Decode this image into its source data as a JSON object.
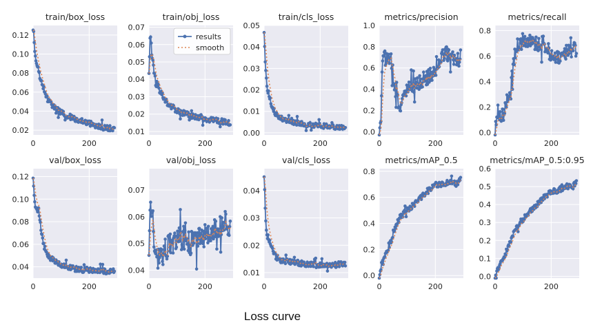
{
  "caption": "Loss curve",
  "legend": {
    "results_label": "results",
    "smooth_label": "smooth",
    "placement": "upper right of train/obj_loss"
  },
  "colors": {
    "results": "#4c72b0",
    "smooth": "#dd8452",
    "panel_background": "#eaeaf2"
  },
  "chart_data": [
    {
      "type": "line",
      "title": "train/box_loss",
      "xlim": [
        0,
        300
      ],
      "ylim": [
        0.015,
        0.13
      ],
      "xticks": [
        "0",
        "200"
      ],
      "yticks": [
        "0.02",
        "0.04",
        "0.06",
        "0.08",
        "0.10",
        "0.12"
      ],
      "grid": true,
      "series": [
        {
          "name": "results",
          "x": [
            0,
            5,
            10,
            20,
            30,
            40,
            50,
            75,
            100,
            150,
            200,
            250,
            290
          ],
          "values": [
            0.128,
            0.105,
            0.09,
            0.082,
            0.07,
            0.062,
            0.053,
            0.044,
            0.038,
            0.032,
            0.027,
            0.023,
            0.021
          ]
        }
      ]
    },
    {
      "type": "line",
      "title": "train/obj_loss",
      "xlim": [
        0,
        300
      ],
      "ylim": [
        0.008,
        0.071
      ],
      "xticks": [
        "0",
        "200"
      ],
      "yticks": [
        "0.01",
        "0.02",
        "0.03",
        "0.04",
        "0.05",
        "0.06",
        "0.07"
      ],
      "grid": true,
      "series": [
        {
          "name": "results",
          "x": [
            0,
            5,
            10,
            20,
            30,
            40,
            50,
            75,
            100,
            150,
            200,
            250,
            290
          ],
          "values": [
            0.045,
            0.068,
            0.055,
            0.042,
            0.037,
            0.033,
            0.03,
            0.025,
            0.022,
            0.019,
            0.017,
            0.016,
            0.015
          ]
        }
      ]
    },
    {
      "type": "line",
      "title": "train/cls_loss",
      "xlim": [
        0,
        300
      ],
      "ylim": [
        -0.001,
        0.05
      ],
      "xticks": [
        "0",
        "200"
      ],
      "yticks": [
        "0.00",
        "0.01",
        "0.02",
        "0.03",
        "0.04",
        "0.05"
      ],
      "grid": true,
      "series": [
        {
          "name": "results",
          "x": [
            0,
            5,
            10,
            20,
            30,
            40,
            50,
            75,
            100,
            150,
            200,
            250,
            290
          ],
          "values": [
            0.048,
            0.03,
            0.022,
            0.016,
            0.012,
            0.009,
            0.0075,
            0.006,
            0.005,
            0.004,
            0.0032,
            0.0028,
            0.0025
          ]
        }
      ]
    },
    {
      "type": "line",
      "title": "metrics/precision",
      "xlim": [
        0,
        300
      ],
      "ylim": [
        -0.03,
        1.0
      ],
      "xticks": [
        "0",
        "200"
      ],
      "yticks": [
        "0.0",
        "0.2",
        "0.4",
        "0.6",
        "0.8",
        "1.0"
      ],
      "grid": true,
      "series": [
        {
          "name": "results",
          "x": [
            0,
            5,
            10,
            15,
            20,
            30,
            40,
            60,
            80,
            100,
            125,
            150,
            175,
            200,
            225,
            250,
            275,
            290
          ],
          "values": [
            0.0,
            0.02,
            0.55,
            0.8,
            0.7,
            0.65,
            0.75,
            0.3,
            0.25,
            0.4,
            0.42,
            0.48,
            0.52,
            0.58,
            0.7,
            0.75,
            0.68,
            0.65
          ]
        }
      ]
    },
    {
      "type": "line",
      "title": "metrics/recall",
      "xlim": [
        0,
        300
      ],
      "ylim": [
        -0.02,
        0.84
      ],
      "xticks": [
        "0",
        "200"
      ],
      "yticks": [
        "0.0",
        "0.2",
        "0.4",
        "0.6",
        "0.8"
      ],
      "grid": true,
      "series": [
        {
          "name": "results",
          "x": [
            0,
            5,
            10,
            20,
            30,
            40,
            50,
            60,
            70,
            80,
            100,
            125,
            150,
            175,
            200,
            225,
            250,
            275,
            290
          ],
          "values": [
            0.01,
            0.05,
            0.18,
            0.12,
            0.15,
            0.25,
            0.3,
            0.45,
            0.62,
            0.68,
            0.72,
            0.73,
            0.7,
            0.7,
            0.6,
            0.6,
            0.62,
            0.65,
            0.66
          ]
        }
      ]
    },
    {
      "type": "line",
      "title": "val/box_loss",
      "xlim": [
        0,
        300
      ],
      "ylim": [
        0.03,
        0.127
      ],
      "xticks": [
        "0",
        "200"
      ],
      "yticks": [
        "0.04",
        "0.06",
        "0.08",
        "0.10",
        "0.12"
      ],
      "grid": true,
      "series": [
        {
          "name": "results",
          "x": [
            0,
            5,
            10,
            20,
            30,
            40,
            50,
            75,
            100,
            150,
            200,
            250,
            290
          ],
          "values": [
            0.121,
            0.1,
            0.09,
            0.09,
            0.07,
            0.058,
            0.05,
            0.045,
            0.042,
            0.038,
            0.037,
            0.036,
            0.036
          ]
        }
      ]
    },
    {
      "type": "line",
      "title": "val/obj_loss",
      "xlim": [
        0,
        300
      ],
      "ylim": [
        0.037,
        0.078
      ],
      "xticks": [
        "0",
        "200"
      ],
      "yticks": [
        "0.04",
        "0.05",
        "0.06",
        "0.07"
      ],
      "grid": true,
      "series": [
        {
          "name": "results",
          "x": [
            0,
            5,
            10,
            15,
            20,
            30,
            40,
            50,
            75,
            100,
            125,
            150,
            175,
            200,
            225,
            250,
            275,
            290
          ],
          "values": [
            0.05,
            0.06,
            0.065,
            0.058,
            0.048,
            0.044,
            0.043,
            0.046,
            0.05,
            0.051,
            0.052,
            0.05,
            0.051,
            0.053,
            0.054,
            0.056,
            0.058,
            0.055
          ]
        }
      ]
    },
    {
      "type": "line",
      "title": "val/cls_loss",
      "xlim": [
        0,
        300
      ],
      "ylim": [
        0.008,
        0.048
      ],
      "xticks": [
        "0",
        "200"
      ],
      "yticks": [
        "0.01",
        "0.02",
        "0.03",
        "0.04"
      ],
      "grid": true,
      "series": [
        {
          "name": "results",
          "x": [
            0,
            5,
            10,
            20,
            30,
            40,
            50,
            75,
            100,
            150,
            200,
            250,
            290
          ],
          "values": [
            0.046,
            0.03,
            0.024,
            0.021,
            0.018,
            0.016,
            0.015,
            0.014,
            0.014,
            0.013,
            0.013,
            0.013,
            0.013
          ]
        }
      ]
    },
    {
      "type": "line",
      "title": "metrics/mAP_0.5",
      "xlim": [
        0,
        300
      ],
      "ylim": [
        -0.02,
        0.82
      ],
      "xticks": [
        "0",
        "200"
      ],
      "yticks": [
        "0.0",
        "0.2",
        "0.4",
        "0.6",
        "0.8"
      ],
      "grid": true,
      "series": [
        {
          "name": "results",
          "x": [
            0,
            5,
            10,
            20,
            30,
            40,
            50,
            60,
            75,
            100,
            125,
            150,
            175,
            200,
            225,
            250,
            275,
            290
          ],
          "values": [
            0.0,
            0.05,
            0.1,
            0.15,
            0.2,
            0.25,
            0.32,
            0.38,
            0.45,
            0.5,
            0.55,
            0.6,
            0.65,
            0.7,
            0.7,
            0.72,
            0.7,
            0.75
          ]
        }
      ]
    },
    {
      "type": "line",
      "title": "metrics/mAP_0.5:0.95",
      "xlim": [
        0,
        300
      ],
      "ylim": [
        -0.01,
        0.6
      ],
      "xticks": [
        "0",
        "200"
      ],
      "yticks": [
        "0.0",
        "0.1",
        "0.2",
        "0.3",
        "0.4",
        "0.5",
        "0.6"
      ],
      "grid": true,
      "series": [
        {
          "name": "results",
          "x": [
            0,
            5,
            10,
            20,
            30,
            40,
            50,
            60,
            75,
            100,
            125,
            150,
            175,
            200,
            225,
            250,
            275,
            290
          ],
          "values": [
            0.0,
            0.02,
            0.04,
            0.07,
            0.1,
            0.14,
            0.18,
            0.22,
            0.27,
            0.32,
            0.36,
            0.4,
            0.44,
            0.47,
            0.48,
            0.5,
            0.5,
            0.52
          ]
        }
      ]
    }
  ]
}
